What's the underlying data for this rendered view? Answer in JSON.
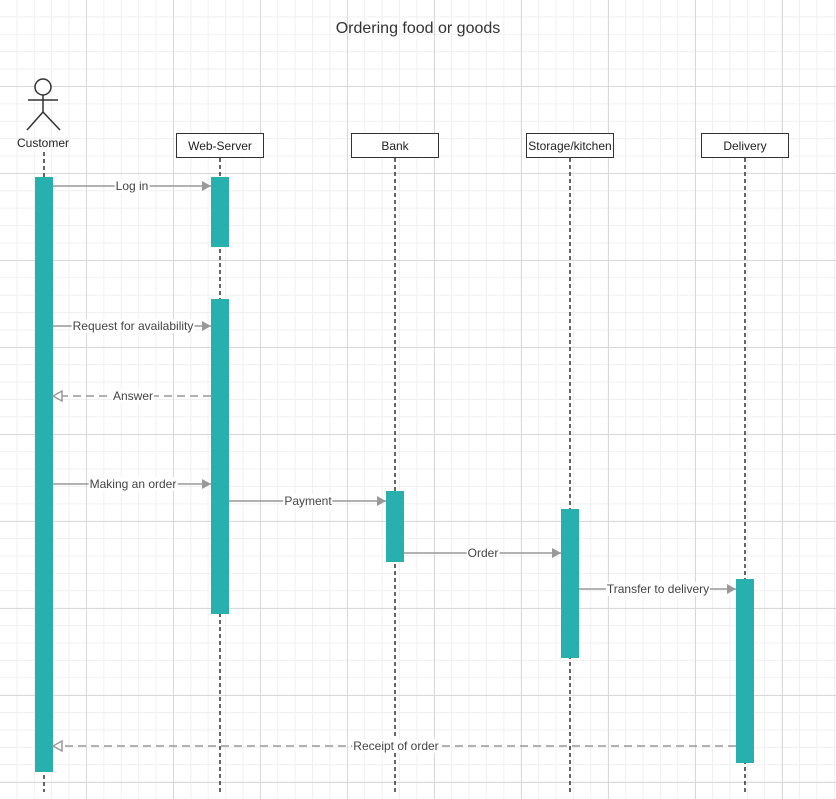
{
  "title": "Ordering food or goods",
  "colors": {
    "activation": "#27b0ae",
    "arrow": "#999999",
    "lifeline": "#333333"
  },
  "actor": {
    "label": "Customer",
    "icon": "stick-figure-actor-icon"
  },
  "participants": [
    {
      "id": "web_server",
      "label": "Web-Server"
    },
    {
      "id": "bank",
      "label": "Bank"
    },
    {
      "id": "storage",
      "label": "Storage/kitchen"
    },
    {
      "id": "delivery",
      "label": "Delivery"
    }
  ],
  "messages": [
    {
      "label": "Log in",
      "from": "customer",
      "to": "web_server",
      "style": "solid"
    },
    {
      "label": "Request for availability",
      "from": "customer",
      "to": "web_server",
      "style": "solid"
    },
    {
      "label": "Answer",
      "from": "web_server",
      "to": "customer",
      "style": "dashed"
    },
    {
      "label": "Making an order",
      "from": "customer",
      "to": "web_server",
      "style": "solid"
    },
    {
      "label": "Payment",
      "from": "web_server",
      "to": "bank",
      "style": "solid"
    },
    {
      "label": "Order",
      "from": "bank",
      "to": "storage",
      "style": "solid"
    },
    {
      "label": "Transfer to delivery",
      "from": "storage",
      "to": "delivery",
      "style": "solid"
    },
    {
      "label": "Receipt of order",
      "from": "delivery",
      "to": "customer",
      "style": "dashed"
    }
  ]
}
